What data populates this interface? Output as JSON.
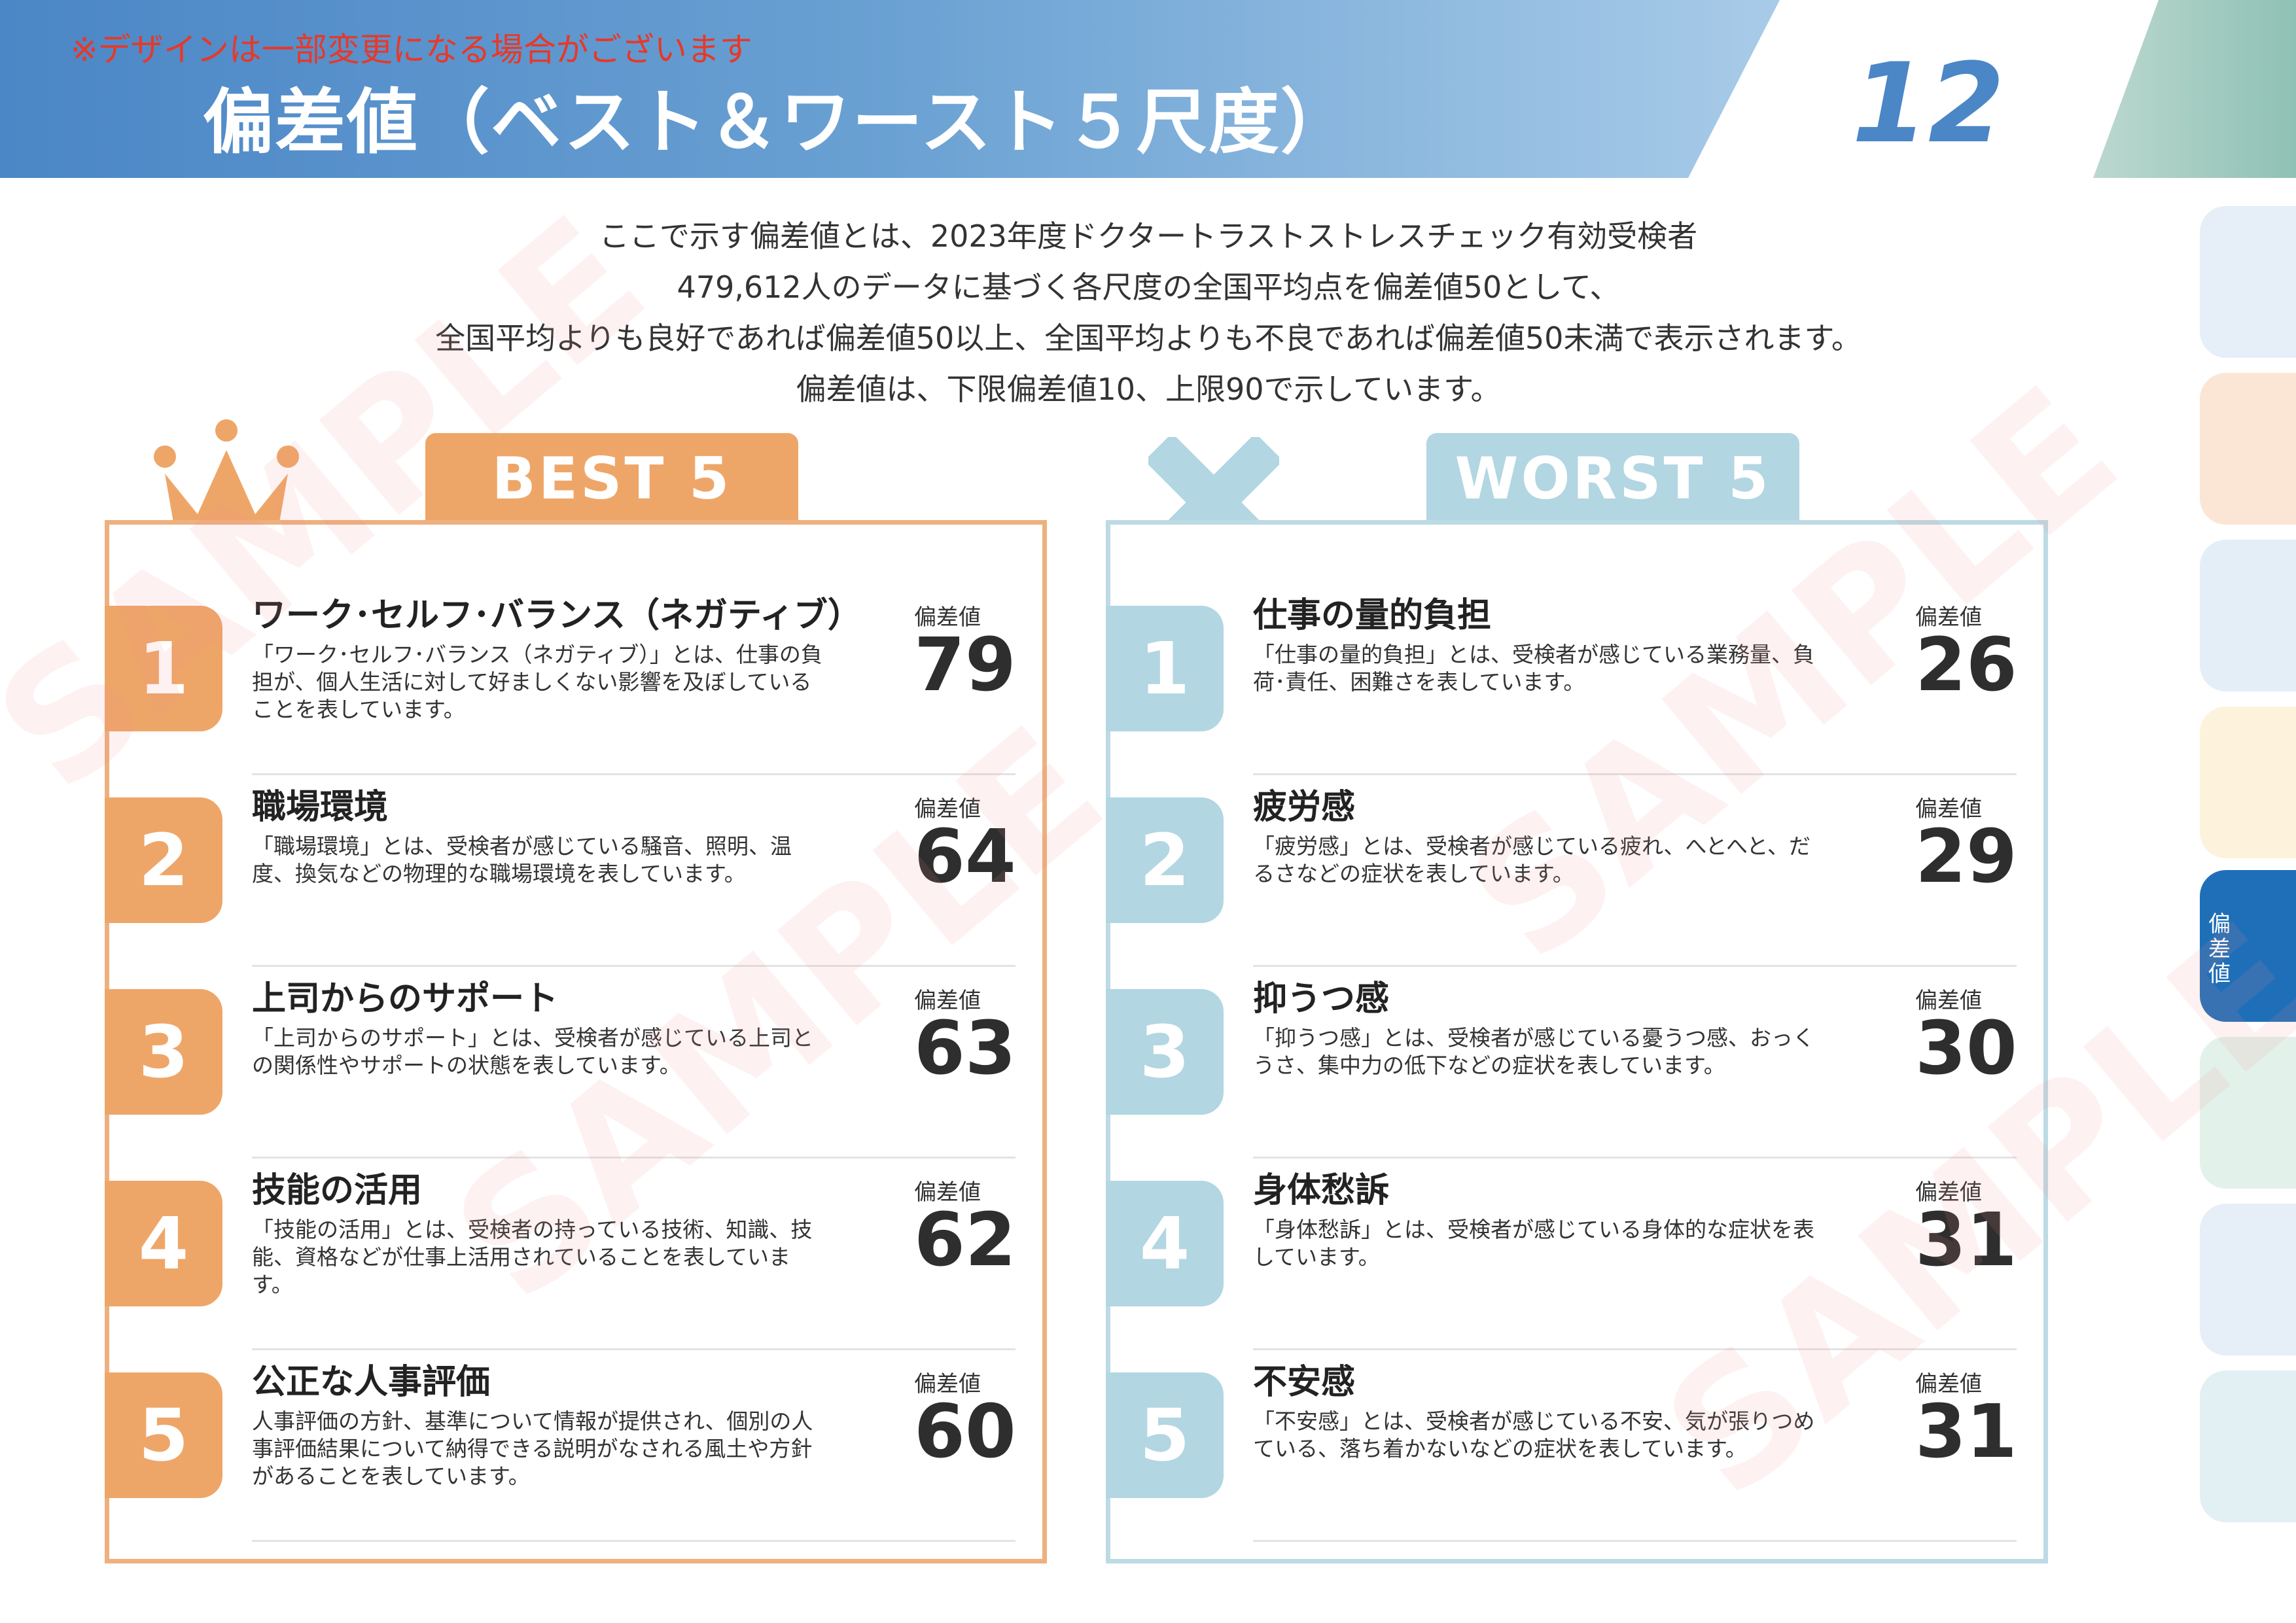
{
  "header": {
    "notice": "※デザインは一部変更になる場合がございます",
    "title": "偏差値（ベスト＆ワースト５尺度）",
    "page_number": "12"
  },
  "intro": [
    "ここで示す偏差値とは、2023年度ドクタートラストストレスチェック有効受検者",
    "479,612人のデータに基づく各尺度の全国平均点を偏差値50として、",
    "全国平均よりも良好であれば偏差値50以上、全国平均よりも不良であれば偏差値50未満で表示されます。",
    "偏差値は、下限偏差値10、上限90で示しています。"
  ],
  "score_label": "偏差値",
  "best": {
    "heading": "BEST 5",
    "icon": "crown-icon",
    "items": [
      {
        "rank": "1",
        "name": "ワーク･セルフ･バランス（ネガティブ）",
        "desc": "「ワーク･セルフ･バランス（ネガティブ）」とは、仕事の負担が、個人生活に対して好ましくない影響を及ぼしていることを表しています。",
        "score": "79"
      },
      {
        "rank": "2",
        "name": "職場環境",
        "desc": "「職場環境」とは、受検者が感じている騒音、照明、温度、換気などの物理的な職場環境を表しています。",
        "score": "64"
      },
      {
        "rank": "3",
        "name": "上司からのサポート",
        "desc": "「上司からのサポート」とは、受検者が感じている上司との関係性やサポートの状態を表しています。",
        "score": "63"
      },
      {
        "rank": "4",
        "name": "技能の活用",
        "desc": "「技能の活用」とは、受検者の持っている技術、知識、技能、資格などが仕事上活用されていることを表しています。",
        "score": "62"
      },
      {
        "rank": "5",
        "name": "公正な人事評価",
        "desc": "人事評価の方針、基準について情報が提供され、個別の人事評価結果について納得できる説明がなされる風土や方針があることを表しています。",
        "score": "60"
      }
    ]
  },
  "worst": {
    "heading": "WORST 5",
    "icon": "cross-icon",
    "items": [
      {
        "rank": "1",
        "name": "仕事の量的負担",
        "desc": "「仕事の量的負担」とは、受検者が感じている業務量、負荷･責任、困難さを表しています。",
        "score": "26"
      },
      {
        "rank": "2",
        "name": "疲労感",
        "desc": "「疲労感」とは、受検者が感じている疲れ、へとへと、だるさなどの症状を表しています。",
        "score": "29"
      },
      {
        "rank": "3",
        "name": "抑うつ感",
        "desc": "「抑うつ感」とは、受検者が感じている憂うつ感、おっくうさ、集中力の低下などの症状を表しています。",
        "score": "30"
      },
      {
        "rank": "4",
        "name": "身体愁訴",
        "desc": "「身体愁訴」とは、受検者が感じている身体的な症状を表しています。",
        "score": "31"
      },
      {
        "rank": "5",
        "name": "不安感",
        "desc": "「不安感」とは、受検者が感じている不安、気が張りつめている、落ち着かないなどの症状を表しています。",
        "score": "31"
      }
    ]
  },
  "side_tabs": {
    "active_label": "偏差値",
    "colors": [
      "#e6eef8",
      "#fbe6d6",
      "#e4eef7",
      "#fdf3dc",
      "#1f6fb8",
      "#e2f2ea",
      "#e6eef8",
      "#e2f0f4"
    ]
  },
  "watermark": "SAMPLE"
}
